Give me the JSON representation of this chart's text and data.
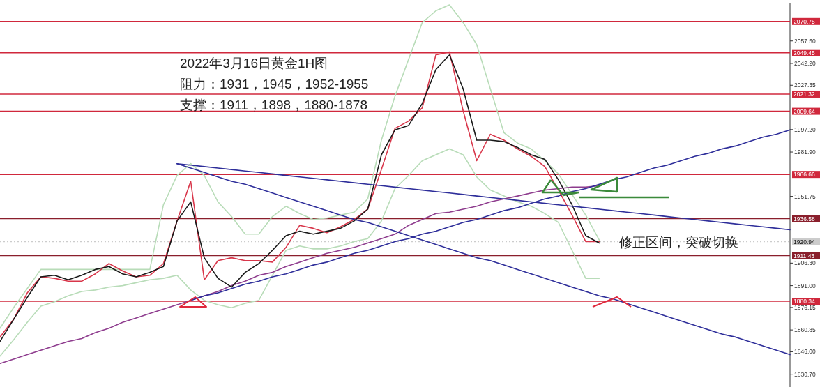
{
  "chart_data": {
    "type": "line",
    "ylim": [
      1822,
      2083
    ],
    "tick_labels": "y",
    "categories": [
      null,
      null,
      null,
      null,
      null,
      null,
      null,
      null,
      null,
      null,
      null,
      null,
      null,
      null,
      null,
      null,
      null,
      null,
      null,
      null,
      null,
      null,
      null,
      null,
      null,
      null,
      null,
      null,
      null,
      null,
      null,
      null,
      null,
      null,
      null,
      null,
      null,
      null,
      null,
      null,
      null,
      null,
      null,
      null,
      null,
      null,
      null,
      null,
      null,
      null,
      null,
      null,
      null,
      null,
      null,
      null,
      null,
      null,
      null
    ],
    "yticks": [
      {
        "value": 2057.5,
        "label": "2057.50"
      },
      {
        "value": 2042.2,
        "label": "2042.20"
      },
      {
        "value": 2027.35,
        "label": "2027.35"
      },
      {
        "value": 1997.2,
        "label": "1997.20"
      },
      {
        "value": 1981.9,
        "label": "1981.90"
      },
      {
        "value": 1951.75,
        "label": "1951.75"
      },
      {
        "value": 1906.3,
        "label": "1906.30"
      },
      {
        "value": 1891,
        "label": "1891.00"
      },
      {
        "value": 1876.15,
        "label": "1876.15"
      },
      {
        "value": 1860.85,
        "label": "1860.85"
      },
      {
        "value": 1846,
        "label": "1846.00"
      },
      {
        "value": 1830.7,
        "label": "1830.70"
      }
    ],
    "series": [
      {
        "color": "#b8dcb8",
        "values": [
          1862,
          1876,
          1889,
          1902,
          1902,
          1902,
          1902,
          1902,
          1902,
          1902,
          1902,
          1902,
          1946,
          1966,
          1974,
          1966,
          1948,
          1938,
          1926,
          1926,
          1938,
          1945,
          1940,
          1936,
          1937,
          1939,
          1941,
          1950,
          1990,
          2020,
          2045,
          2070,
          2078,
          2082,
          2070,
          2055,
          2025,
          1995,
          1988,
          1984,
          1976,
          1967,
          1953,
          1939,
          1922,
          null,
          null,
          null,
          null,
          null,
          null,
          null,
          null,
          null,
          null,
          null,
          null,
          null,
          null
        ]
      },
      {
        "color": "#b8dcb8",
        "values": [
          1843,
          1854,
          1866,
          1877,
          1880,
          1884,
          1887,
          1888,
          1890,
          1891,
          1893,
          1895,
          1896,
          1898,
          1888,
          1881,
          1878,
          1876,
          1879,
          1881,
          1898,
          1915,
          1918,
          1916,
          1916,
          1918,
          1921,
          1923,
          1935,
          1957,
          1966,
          1976,
          1980,
          1984,
          1980,
          1965,
          1956,
          1952,
          1948,
          1945,
          1940,
          1934,
          1915,
          1896,
          1896,
          null,
          null,
          null,
          null,
          null,
          null,
          null,
          null,
          null,
          null,
          null,
          null,
          null,
          null
        ]
      },
      {
        "color": "#8e3c8e",
        "values": [
          1838,
          1841,
          1844,
          1847,
          1850,
          1853,
          1855,
          1859,
          1862,
          1866,
          1869,
          1872,
          1875,
          1878,
          1881,
          1884,
          1887,
          1891,
          1894,
          1898,
          1900,
          1904,
          1907,
          1910,
          1913,
          1915,
          1917,
          1920,
          1923,
          1926,
          1932,
          1936,
          1940,
          1941,
          1943,
          1945,
          1948,
          1950,
          1952,
          1954,
          1956,
          1957,
          1958,
          1958,
          1959,
          null,
          null,
          null,
          null,
          null,
          null,
          null,
          null,
          null,
          null,
          null,
          null,
          null,
          null
        ]
      },
      {
        "color": "#d8364a",
        "values": [
          1856,
          1868,
          1886,
          1897,
          1896,
          1894,
          1894,
          1899,
          1906,
          1901,
          1897,
          1898,
          1906,
          1935,
          1962,
          1895,
          1908,
          1910,
          1908,
          1908,
          1907,
          1917,
          1932,
          1930,
          1927,
          1931,
          1936,
          1943,
          1970,
          1998,
          2003,
          2012,
          2048,
          2050,
          2010,
          1976,
          1994,
          1990,
          1984,
          1979,
          1972,
          1956,
          1939,
          1921,
          1921,
          null,
          null,
          null,
          null,
          null,
          null,
          null,
          null,
          null,
          null,
          null,
          null,
          null,
          null
        ]
      },
      {
        "color": "#1a1a1a",
        "values": [
          1853,
          1868,
          1883,
          1897,
          1898,
          1895,
          1898,
          1902,
          1904,
          1899,
          1897,
          1900,
          1904,
          1935,
          1948,
          1910,
          1896,
          1890,
          1900,
          1906,
          1915,
          1925,
          1928,
          1926,
          1928,
          1930,
          1935,
          1943,
          1980,
          1997,
          2000,
          2015,
          2038,
          2048,
          2025,
          1990,
          1990,
          1989,
          1985,
          1980,
          1977,
          1963,
          1946,
          1925,
          1920,
          null,
          null,
          null,
          null,
          null,
          null,
          null,
          null,
          null,
          null,
          null,
          null,
          null,
          null
        ]
      },
      {
        "color": "#2e2e9a",
        "values": [
          null,
          null,
          null,
          null,
          null,
          null,
          null,
          null,
          null,
          null,
          null,
          null,
          null,
          1974,
          1973,
          1972,
          1971,
          1970,
          1969,
          1968,
          1967,
          1966,
          1965,
          1964,
          1963,
          1962,
          1961,
          1960,
          1959,
          1958,
          1957,
          1956,
          1955,
          1954,
          1953,
          1952,
          1951,
          1950,
          1949,
          1948,
          1947,
          1946,
          1945,
          1944,
          1943,
          1942,
          1941,
          1940,
          1939,
          1938,
          1937,
          1936,
          1935,
          1934,
          1933,
          1932,
          1931,
          1930,
          1929
        ]
      },
      {
        "color": "#2e2e9a",
        "values": [
          null,
          null,
          null,
          null,
          null,
          null,
          null,
          null,
          null,
          null,
          null,
          null,
          null,
          1974,
          1971,
          1968,
          1965,
          1962,
          1960,
          1957,
          1954,
          1951,
          1948,
          1945,
          1942,
          1939,
          1936,
          1934,
          1931,
          1928,
          1925,
          1922,
          1919,
          1916,
          1913,
          1910,
          1908,
          1905,
          1902,
          1899,
          1896,
          1893,
          1890,
          1887,
          1884,
          1882,
          1879,
          1876,
          1873,
          1870,
          1867,
          1864,
          1861,
          1858,
          1856,
          1853,
          1850,
          1847,
          1844
        ]
      },
      {
        "color": "#2e2e9a",
        "values": [
          null,
          null,
          null,
          null,
          null,
          null,
          null,
          null,
          null,
          null,
          null,
          null,
          null,
          null,
          1881,
          1884,
          1886,
          1889,
          1892,
          1894,
          1897,
          1899,
          1902,
          1905,
          1907,
          1910,
          1913,
          1915,
          1918,
          1921,
          1923,
          1926,
          1928,
          1931,
          1934,
          1936,
          1939,
          1942,
          1944,
          1947,
          1950,
          1952,
          1955,
          1957,
          1960,
          1963,
          1965,
          1968,
          1971,
          1973,
          1976,
          1979,
          1981,
          1984,
          1986,
          1989,
          1992,
          1994,
          1997
        ]
      }
    ],
    "ref_lines": [
      {
        "axis": "y",
        "value": 2070.75,
        "label": "2070.75",
        "color": "#d0283c"
      },
      {
        "axis": "y",
        "value": 2049.45,
        "label": "2049.45",
        "color": "#d0283c"
      },
      {
        "axis": "y",
        "value": 2021.32,
        "label": "2021.32",
        "color": "#d0283c"
      },
      {
        "axis": "y",
        "value": 2009.64,
        "label": "2009.64",
        "color": "#d0283c"
      },
      {
        "axis": "y",
        "value": 1966.66,
        "label": "1966.66",
        "color": "#d0283c"
      },
      {
        "axis": "y",
        "value": 1936.58,
        "label": "1936.58",
        "color": "#8a1f2c"
      },
      {
        "axis": "y",
        "value": 1920.94,
        "label": "1920.94",
        "color": "#cccccc",
        "line_style": "dotted"
      },
      {
        "axis": "y",
        "value": 1911.43,
        "label": "1911.43",
        "color": "#8a1f2c"
      },
      {
        "axis": "y",
        "value": 1880.34,
        "label": "1880.34",
        "color": "#d0283c"
      }
    ],
    "annotations": [
      "2022年3月16日黄金1H图",
      "阻力：1931，1945，1952-1955",
      "支撑：1911，1898，1880-1878",
      "修正区间，突破切换"
    ]
  }
}
